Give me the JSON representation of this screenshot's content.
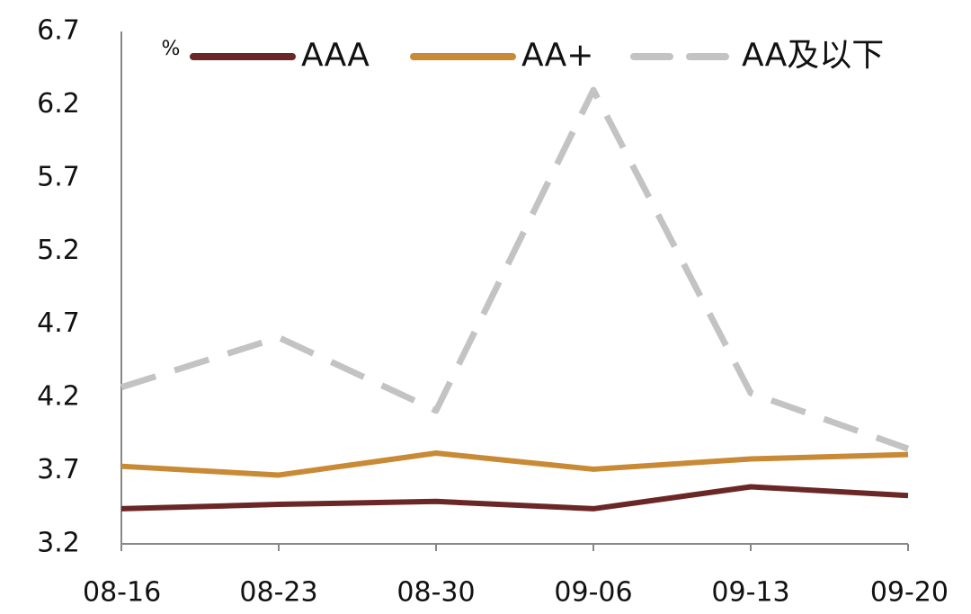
{
  "chart_data": {
    "type": "line",
    "y_unit_label": "%",
    "categories": [
      "08-16",
      "08-23",
      "08-30",
      "09-06",
      "09-13",
      "09-20"
    ],
    "series": [
      {
        "name": "AAA",
        "color": "#6b2626",
        "values": [
          3.44,
          3.47,
          3.49,
          3.44,
          3.59,
          3.53
        ]
      },
      {
        "name": "AA+",
        "color": "#c98a35",
        "values": [
          3.73,
          3.67,
          3.82,
          3.71,
          3.78,
          3.81
        ]
      },
      {
        "name": "AA及以下",
        "color": "#c3c3c3",
        "dashed": true,
        "values": [
          4.27,
          4.61,
          4.11,
          6.3,
          4.23,
          3.85
        ]
      }
    ],
    "ylim": [
      3.2,
      6.7
    ],
    "yticks": [
      3.2,
      3.7,
      4.2,
      4.7,
      5.2,
      5.7,
      6.2,
      6.7
    ],
    "grid": false,
    "legend": "top"
  }
}
